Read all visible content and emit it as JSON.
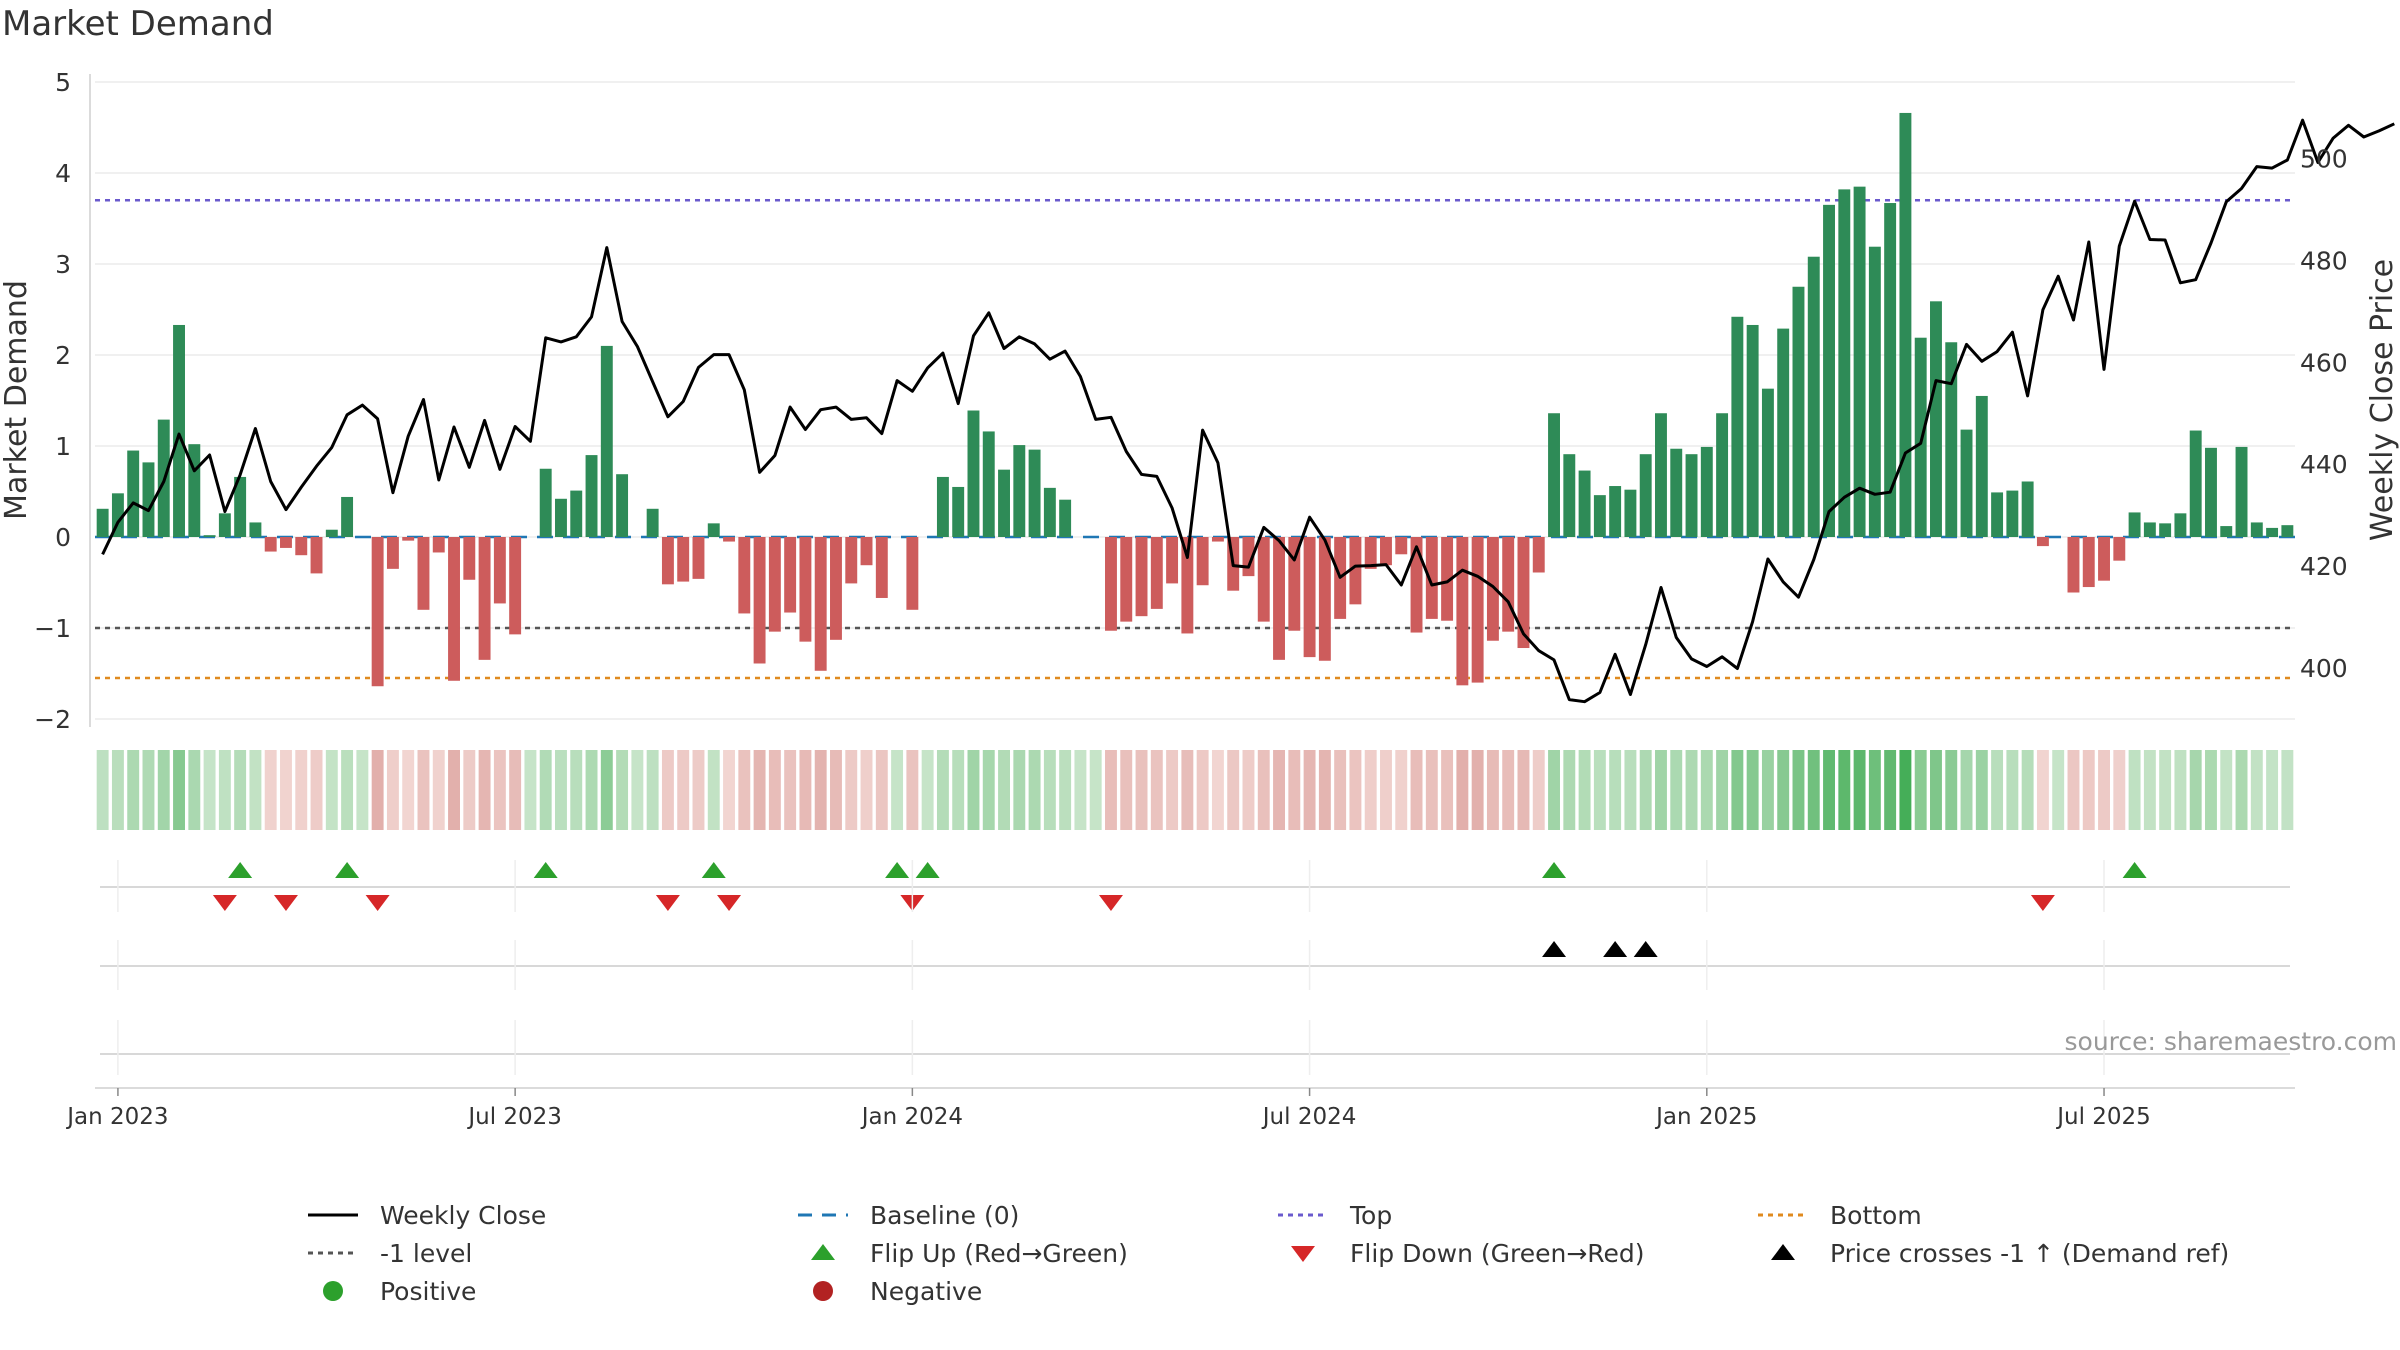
{
  "title": "Market Demand",
  "source": "source: sharemaestro.com",
  "colors": {
    "pos_bar": "#2e8b57",
    "neg_bar": "#cd5c5c",
    "price": "#000000",
    "baseline": "#1f77b4",
    "top": "#6a5acd",
    "minus1": "#555555",
    "bottom": "#e08a1e",
    "flip_up": "#2ca02c",
    "flip_down": "#d62728",
    "cross": "#000000",
    "positive": "#2ca02c",
    "negative": "#b22222"
  },
  "chart_data": {
    "type": "bar+line",
    "title": "Market Demand",
    "ylabel_left": "Market Demand",
    "ylabel_right": "Weekly Close Price",
    "ylim_left": [
      -2,
      5
    ],
    "ylim_right": [
      390,
      515
    ],
    "yticks_left": [
      "5",
      "4",
      "3",
      "2",
      "1",
      "0",
      "−1",
      "−2"
    ],
    "yticks_right": [
      "500",
      "480",
      "460",
      "440",
      "420",
      "400"
    ],
    "x_labels": [
      "Jan 2023",
      "Jul 2023",
      "Jan 2024",
      "Jul 2024",
      "Jan 2025",
      "Jul 2025"
    ],
    "x_label_weeks": [
      1,
      27,
      53,
      79,
      105,
      131
    ],
    "reference_lines": {
      "top": 3.7,
      "minus1": -1.0,
      "bottom": -1.55,
      "baseline": 0
    },
    "demand": [
      0.31,
      0.48,
      0.95,
      0.82,
      1.29,
      2.33,
      1.02,
      0.02,
      0.26,
      0.66,
      0.16,
      -0.16,
      -0.12,
      -0.2,
      -0.4,
      0.08,
      0.44,
      0.0,
      -1.64,
      -0.35,
      -0.04,
      -0.8,
      -0.17,
      -1.58,
      -0.47,
      -1.35,
      -0.73,
      -1.07,
      0.0,
      0.75,
      0.42,
      0.51,
      0.9,
      2.1,
      0.69,
      0.0,
      0.31,
      -0.52,
      -0.49,
      -0.46,
      0.15,
      -0.05,
      -0.84,
      -1.39,
      -1.04,
      -0.83,
      -1.15,
      -1.47,
      -1.13,
      -0.51,
      -0.31,
      -0.67,
      0.0,
      -0.8,
      0.0,
      0.66,
      0.55,
      1.39,
      1.16,
      0.74,
      1.01,
      0.96,
      0.54,
      0.41,
      0.0,
      0.0,
      -1.03,
      -0.93,
      -0.87,
      -0.79,
      -0.51,
      -1.06,
      -0.53,
      -0.05,
      -0.59,
      -0.43,
      -0.93,
      -1.35,
      -1.03,
      -1.32,
      -1.36,
      -0.9,
      -0.74,
      -0.35,
      -0.31,
      -0.19,
      -1.05,
      -0.9,
      -0.92,
      -1.63,
      -1.6,
      -1.14,
      -1.04,
      -1.22,
      -0.39,
      1.36,
      0.91,
      0.73,
      0.46,
      0.56,
      0.52,
      0.91,
      1.36,
      0.97,
      0.91,
      0.99,
      1.36,
      2.42,
      2.33,
      1.63,
      2.29,
      2.75,
      3.08,
      3.65,
      3.82,
      3.85,
      3.19,
      3.67,
      4.66,
      2.19,
      2.59,
      2.14,
      1.18,
      1.55,
      0.49,
      0.51,
      0.61,
      -0.1,
      0.0,
      -0.61,
      -0.55,
      -0.48,
      -0.26,
      0.27,
      0.16,
      0.15,
      0.26,
      1.17,
      0.98,
      0.12,
      0.99,
      0.16,
      0.1,
      0.13
    ],
    "price": [
      422.3,
      428.6,
      432.4,
      430.9,
      436.6,
      445.9,
      438.7,
      441.8,
      430.7,
      437.9,
      447.0,
      436.6,
      431.1,
      435.5,
      439.6,
      443.3,
      449.7,
      451.6,
      448.9,
      434.4,
      445.5,
      452.7,
      436.9,
      447.3,
      439.4,
      448.6,
      439.0,
      447.4,
      444.5,
      464.8,
      464.0,
      465.0,
      468.9,
      482.5,
      468.0,
      463.1,
      456.2,
      449.3,
      452.3,
      459.0,
      461.5,
      461.5,
      454.6,
      438.4,
      441.7,
      451.2,
      446.8,
      450.7,
      451.2,
      448.8,
      449.1,
      446.0,
      456.4,
      454.3,
      458.9,
      461.8,
      451.9,
      465.2,
      469.7,
      462.7,
      465.0,
      463.6,
      460.6,
      462.2,
      457.2,
      448.8,
      449.2,
      442.5,
      438.0,
      437.6,
      431.4,
      421.7,
      446.7,
      440.3,
      420.1,
      419.8,
      427.6,
      425.0,
      421.2,
      429.6,
      425.1,
      417.8,
      420.0,
      420.1,
      420.3,
      416.3,
      423.8,
      416.3,
      416.9,
      419.2,
      418.0,
      416.0,
      413.0,
      406.7,
      403.4,
      401.6,
      393.8,
      393.4,
      395.2,
      402.7,
      394.8,
      404.6,
      415.8,
      406.0,
      401.8,
      400.3,
      402.2,
      399.9,
      409.1,
      421.4,
      416.9,
      413.9,
      421.3,
      430.7,
      433.5,
      435.3,
      434.1,
      434.5,
      442.2,
      444.1,
      456.4,
      455.8,
      463.5,
      460.2,
      462.1,
      465.9,
      453.4,
      470.3,
      476.9,
      468.3,
      483.6,
      458.6,
      482.8,
      491.6,
      484.1,
      484.0,
      475.6,
      476.2,
      483.4,
      491.5,
      494.1,
      498.4,
      498.1,
      499.7,
      507.5,
      499.2,
      504.0,
      506.5,
      504.2,
      505.4,
      506.8
    ],
    "flip_up_weeks": [
      9,
      16,
      29,
      40,
      52,
      54,
      95,
      133
    ],
    "flip_down_weeks": [
      8,
      12,
      18,
      37,
      41,
      53,
      66,
      127
    ],
    "price_cross_weeks": [
      95,
      99,
      101
    ],
    "heat_weeks": 144,
    "legend": [
      {
        "label": "Weekly Close",
        "symbol": "price"
      },
      {
        "label": "Baseline (0)",
        "symbol": "baseline"
      },
      {
        "label": "Top",
        "symbol": "top"
      },
      {
        "label": "Bottom",
        "symbol": "bottom"
      },
      {
        "label": "-1 level",
        "symbol": "minus1"
      },
      {
        "label": "Flip Up (Red→Green)",
        "symbol": "flip_up"
      },
      {
        "label": "Flip Down (Green→Red)",
        "symbol": "flip_down"
      },
      {
        "label": "Price crosses -1 ↑ (Demand ref)",
        "symbol": "cross"
      },
      {
        "label": "Positive",
        "symbol": "positive"
      },
      {
        "label": "Negative",
        "symbol": "negative"
      }
    ]
  }
}
